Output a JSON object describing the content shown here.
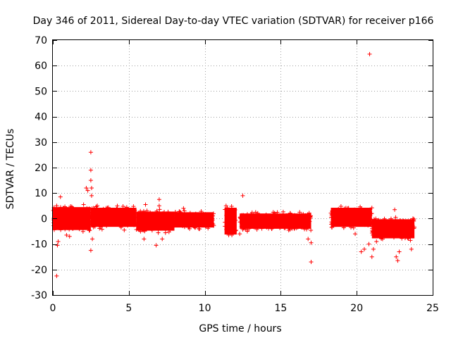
{
  "chart_data": {
    "type": "scatter",
    "title": "Day 346 of 2011, Sidereal Day-to-day VTEC variation (SDTVAR) for receiver p166",
    "xlabel": "GPS time / hours",
    "ylabel": "SDTVAR / TECUs",
    "xlim": [
      0,
      25
    ],
    "ylim": [
      -30,
      70
    ],
    "xticks": [
      0,
      5,
      10,
      15,
      20,
      25
    ],
    "xtick_labels": [
      "0",
      "5",
      "10",
      "15",
      "20",
      "25"
    ],
    "yticks": [
      -30,
      -20,
      -10,
      0,
      10,
      20,
      30,
      40,
      50,
      60,
      70
    ],
    "ytick_labels": [
      "-30",
      "-20",
      "-10",
      "0",
      "10",
      "20",
      "30",
      "40",
      "50",
      "60",
      "70"
    ],
    "grid": true,
    "marker": "+",
    "color": "#ff0000",
    "series": [
      {
        "name": "SDTVAR",
        "bands": [
          {
            "x0": 0.0,
            "x1": 2.5,
            "mean": 0,
            "spread": 6
          },
          {
            "x0": 2.5,
            "x1": 5.5,
            "mean": 0.5,
            "spread": 5
          },
          {
            "x0": 5.5,
            "x1": 8.0,
            "mean": -1,
            "spread": 5
          },
          {
            "x0": 8.0,
            "x1": 10.6,
            "mean": -0.5,
            "spread": 4
          },
          {
            "x0": 11.3,
            "x1": 12.1,
            "mean": -1,
            "spread": 7
          },
          {
            "x0": 12.3,
            "x1": 17.0,
            "mean": -1,
            "spread": 4
          },
          {
            "x0": 18.3,
            "x1": 21.0,
            "mean": 0.5,
            "spread": 5
          },
          {
            "x0": 21.0,
            "x1": 23.8,
            "mean": -4,
            "spread": 5
          }
        ],
        "points": [
          [
            0.25,
            -22.5
          ],
          [
            0.3,
            -10.5
          ],
          [
            0.35,
            -9
          ],
          [
            0.5,
            8.5
          ],
          [
            0.9,
            -6.5
          ],
          [
            1.1,
            -7
          ],
          [
            2.2,
            12
          ],
          [
            2.3,
            11
          ],
          [
            2.5,
            26
          ],
          [
            2.5,
            19
          ],
          [
            2.5,
            15
          ],
          [
            2.55,
            12
          ],
          [
            2.55,
            9
          ],
          [
            2.5,
            -12.5
          ],
          [
            2.6,
            -8
          ],
          [
            4.7,
            -4.5
          ],
          [
            6.0,
            -8
          ],
          [
            6.1,
            5.5
          ],
          [
            6.8,
            -10.5
          ],
          [
            7.0,
            7.5
          ],
          [
            7.0,
            5
          ],
          [
            7.2,
            -8
          ],
          [
            8.6,
            4
          ],
          [
            9.0,
            -4
          ],
          [
            12.5,
            9
          ],
          [
            12.3,
            -6
          ],
          [
            11.4,
            5
          ],
          [
            12.8,
            -5
          ],
          [
            16.8,
            -8
          ],
          [
            17.0,
            -9.5
          ],
          [
            17.0,
            -17
          ],
          [
            18.5,
            3
          ],
          [
            19.9,
            -6
          ],
          [
            20.3,
            -13
          ],
          [
            20.5,
            -12
          ],
          [
            20.8,
            -10
          ],
          [
            20.85,
            64.5
          ],
          [
            21.0,
            -15
          ],
          [
            21.1,
            -12
          ],
          [
            21.3,
            -9
          ],
          [
            22.5,
            3.5
          ],
          [
            22.6,
            -15
          ],
          [
            22.7,
            -16.5
          ],
          [
            22.8,
            -13
          ],
          [
            23.6,
            -12
          ],
          [
            23.7,
            0
          ]
        ]
      }
    ]
  }
}
